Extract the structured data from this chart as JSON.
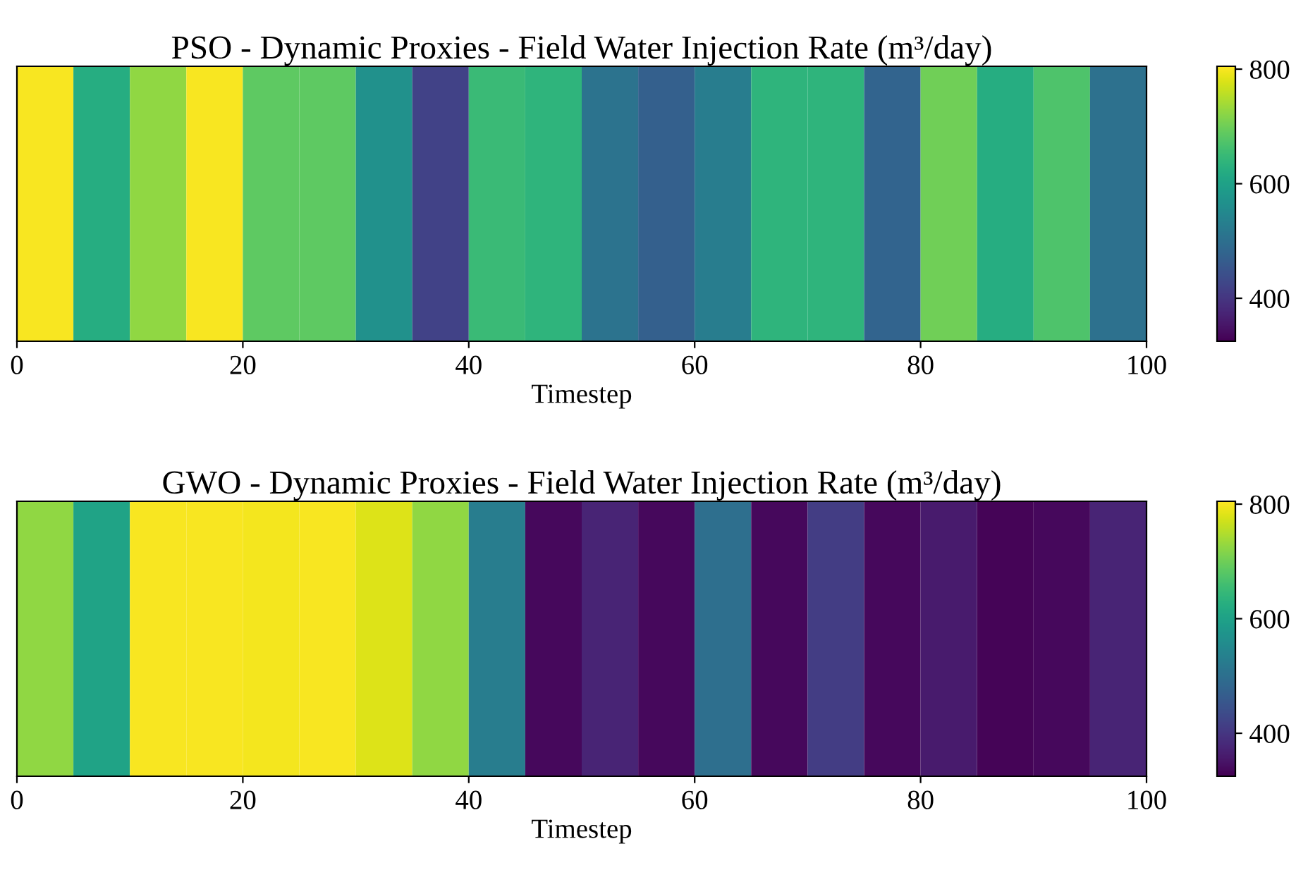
{
  "chart_data": [
    {
      "type": "heatmap",
      "title": "PSO - Dynamic Proxies - Field Water Injection Rate (m³/day)",
      "xlabel": "Timestep",
      "x": [
        2.5,
        7.5,
        12.5,
        17.5,
        22.5,
        27.5,
        32.5,
        37.5,
        42.5,
        47.5,
        52.5,
        57.5,
        62.5,
        67.5,
        72.5,
        77.5,
        82.5,
        87.5,
        92.5,
        97.5
      ],
      "y_categories": [
        null
      ],
      "cells": [
        [
          800,
          623,
          725,
          800,
          685,
          685,
          565,
          420,
          650,
          637,
          507,
          470,
          527,
          637,
          637,
          478,
          700,
          623,
          670,
          503
        ]
      ],
      "xlim": [
        0,
        100
      ],
      "xticks": [
        0,
        20,
        40,
        60,
        80,
        100
      ],
      "clim": [
        325,
        805
      ],
      "cticks": [
        400,
        600,
        800
      ],
      "tick_labels": "x"
    },
    {
      "type": "heatmap",
      "title": "GWO - Dynamic Proxies - Field Water Injection Rate (m³/day)",
      "xlabel": "Timestep",
      "x": [
        2.5,
        7.5,
        12.5,
        17.5,
        22.5,
        27.5,
        32.5,
        37.5,
        42.5,
        47.5,
        52.5,
        57.5,
        62.5,
        67.5,
        72.5,
        77.5,
        82.5,
        87.5,
        92.5,
        97.5
      ],
      "y_categories": [
        null
      ],
      "cells": [
        [
          725,
          603,
          800,
          800,
          797,
          800,
          780,
          725,
          527,
          335,
          373,
          335,
          498,
          335,
          411,
          335,
          359,
          330,
          335,
          373
        ]
      ],
      "xlim": [
        0,
        100
      ],
      "xticks": [
        0,
        20,
        40,
        60,
        80,
        100
      ],
      "clim": [
        325,
        805
      ],
      "cticks": [
        400,
        600,
        800
      ],
      "tick_labels": "x"
    }
  ]
}
